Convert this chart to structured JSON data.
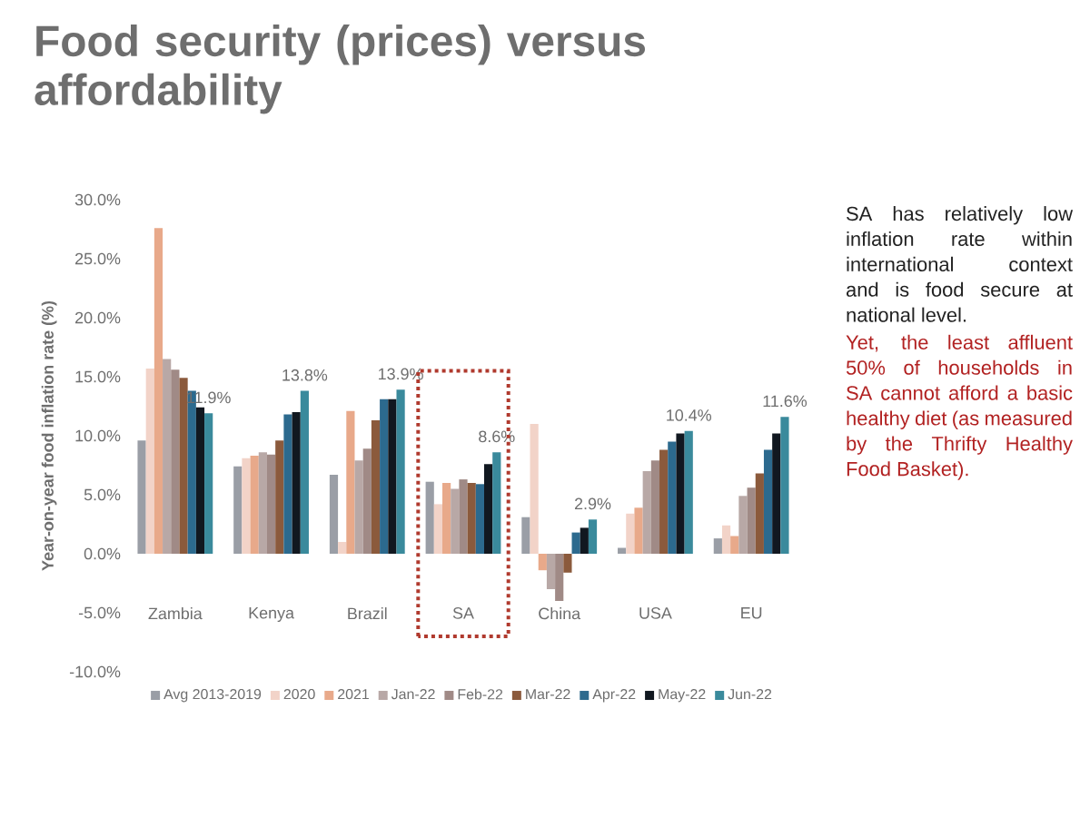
{
  "chart_data": {
    "type": "bar",
    "title": "Food security (prices) versus affordability",
    "ylabel": "Year-on-year food inflation rate (%)",
    "categories": [
      "Zambia",
      "Kenya",
      "Brazil",
      "SA",
      "China",
      "USA",
      "EU"
    ],
    "series": [
      {
        "name": "Avg 2013-2019",
        "color": "#9a9ea6",
        "values": [
          9.6,
          7.4,
          6.7,
          6.1,
          3.1,
          0.5,
          1.3
        ]
      },
      {
        "name": "2020",
        "color": "#f2d3c8",
        "values": [
          15.7,
          8.1,
          1.0,
          4.2,
          11.0,
          3.4,
          2.4
        ]
      },
      {
        "name": "2021",
        "color": "#e8a98a",
        "values": [
          27.6,
          8.3,
          12.1,
          6.0,
          -1.4,
          3.9,
          1.5
        ]
      },
      {
        "name": "Jan-22",
        "color": "#b8a8a6",
        "values": [
          16.5,
          8.6,
          7.9,
          5.5,
          -3.0,
          7.0,
          4.9
        ]
      },
      {
        "name": "Feb-22",
        "color": "#a08a86",
        "values": [
          15.6,
          8.4,
          8.9,
          6.3,
          -4.0,
          7.9,
          5.6
        ]
      },
      {
        "name": "Mar-22",
        "color": "#8b5a3c",
        "values": [
          14.9,
          9.6,
          11.3,
          6.0,
          -1.6,
          8.8,
          6.8
        ]
      },
      {
        "name": "Apr-22",
        "color": "#2c6a8e",
        "values": [
          13.8,
          11.8,
          13.1,
          5.9,
          1.8,
          9.5,
          8.8
        ]
      },
      {
        "name": "May-22",
        "color": "#111820",
        "values": [
          12.4,
          12.0,
          13.1,
          7.6,
          2.2,
          10.2,
          10.2
        ]
      },
      {
        "name": "Jun-22",
        "color": "#3a8a9c",
        "values": [
          11.9,
          13.8,
          13.9,
          8.6,
          2.9,
          10.4,
          11.6
        ],
        "value_labels": [
          "11.9%",
          "13.8%",
          "13.9%",
          "8.6%",
          "2.9%",
          "10.4%",
          "11.6%"
        ]
      }
    ],
    "ylim": [
      -10,
      30
    ],
    "yticks": [
      {
        "value": -10,
        "label": "-10.0%"
      },
      {
        "value": -5,
        "label": "-5.0%"
      },
      {
        "value": 0,
        "label": "0.0%"
      },
      {
        "value": 5,
        "label": "5.0%"
      },
      {
        "value": 10,
        "label": "10.0%"
      },
      {
        "value": 15,
        "label": "15.0%"
      },
      {
        "value": 20,
        "label": "20.0%"
      },
      {
        "value": 25,
        "label": "25.0%"
      },
      {
        "value": 30,
        "label": "30.0%"
      }
    ],
    "legend": "bottom",
    "annotations": [
      "SA has relatively low inflation rate within international context and is food secure at national level.",
      "Yet, the least affluent 50% of households in SA cannot afford a basic healthy diet (as measured by the Thrifty Healthy Food Basket)."
    ]
  }
}
